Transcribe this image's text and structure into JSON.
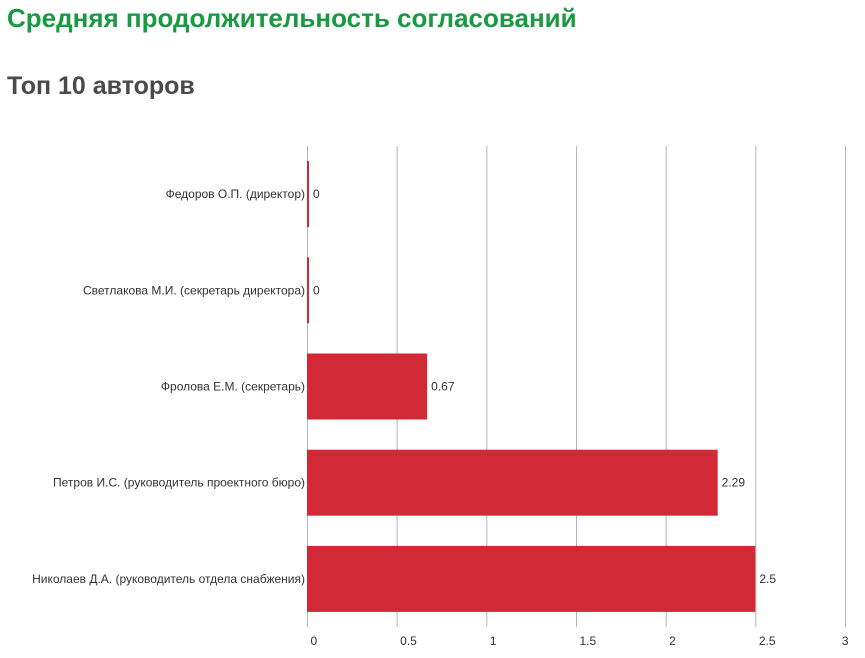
{
  "header": {
    "title": "Средняя продолжительность согласований",
    "subtitle": "Топ 10 авторов"
  },
  "colors": {
    "title": "#179a41",
    "subtitle": "#4a4a4a",
    "bar": "#d12a36",
    "grid": "#b5b5b5"
  },
  "chart_data": {
    "type": "bar",
    "orientation": "horizontal",
    "categories": [
      "Федоров О.П. (директор)",
      "Светлакова М.И. (секретарь директора)",
      "Фролова Е.М. (секретарь)",
      "Петров И.С. (руководитель проектного бюро)",
      "Николаев Д.А. (руководитель отдела снабжения)"
    ],
    "values": [
      0,
      0,
      0.67,
      2.29,
      2.5
    ],
    "value_labels": [
      "0",
      "0",
      "0.67",
      "2.29",
      "2.5"
    ],
    "x_ticks": [
      "0",
      "0.5",
      "1",
      "1.5",
      "2",
      "2.5",
      "3"
    ],
    "xlim": [
      0,
      3
    ],
    "grid": true,
    "legend": "none"
  }
}
